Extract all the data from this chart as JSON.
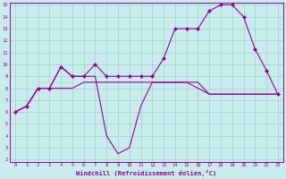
{
  "xlabel": "Windchill (Refroidissement éolien,°C)",
  "bg_color": "#c8ecec",
  "line_color": "#990099",
  "grid_color": "#a0d0d0",
  "ylim": [
    2,
    15
  ],
  "xlim": [
    -0.5,
    23.5
  ],
  "yticks": [
    2,
    3,
    4,
    5,
    6,
    7,
    8,
    9,
    10,
    11,
    12,
    13,
    14,
    15
  ],
  "xticks": [
    0,
    1,
    2,
    3,
    4,
    5,
    6,
    7,
    8,
    9,
    10,
    11,
    12,
    13,
    14,
    15,
    16,
    17,
    18,
    19,
    20,
    21,
    22,
    23
  ],
  "series": [
    {
      "x": [
        0,
        1,
        2,
        3,
        4,
        5,
        6,
        7,
        8,
        9,
        10,
        11,
        12,
        13,
        14,
        15,
        16,
        17,
        18,
        19,
        20,
        21,
        22,
        23
      ],
      "y": [
        6,
        6.5,
        8,
        8,
        8,
        8,
        8.5,
        8.5,
        8.5,
        8.5,
        8.5,
        8.5,
        8.5,
        8.5,
        8.5,
        8.5,
        8.0,
        7.5,
        7.5,
        7.5,
        7.5,
        7.5,
        7.5,
        7.5
      ],
      "marker": null,
      "linewidth": 0.8
    },
    {
      "x": [
        0,
        1,
        2,
        3,
        4,
        5,
        6,
        7,
        8,
        9,
        10,
        11,
        12,
        13,
        14,
        15,
        16,
        17,
        18,
        19,
        20,
        21,
        22,
        23
      ],
      "y": [
        6,
        6.5,
        8,
        8,
        9.8,
        9,
        9,
        10,
        9,
        9,
        9,
        9,
        9,
        10.5,
        13,
        13,
        13,
        14.5,
        15,
        15,
        14,
        11.3,
        9.5,
        7.5
      ],
      "marker": "D",
      "markersize": 2.0,
      "linewidth": 0.8
    },
    {
      "x": [
        0,
        1,
        2,
        3,
        4,
        5,
        6,
        7,
        8,
        9,
        10,
        11,
        12,
        13,
        14,
        15,
        16,
        17,
        18,
        19,
        20,
        21,
        22,
        23
      ],
      "y": [
        6,
        6.5,
        8,
        8,
        9.8,
        9,
        9,
        9,
        4,
        2.5,
        3,
        6.5,
        8.5,
        8.5,
        8.5,
        8.5,
        8.5,
        7.5,
        7.5,
        7.5,
        7.5,
        7.5,
        7.5,
        7.5
      ],
      "marker": null,
      "linewidth": 0.8
    }
  ]
}
